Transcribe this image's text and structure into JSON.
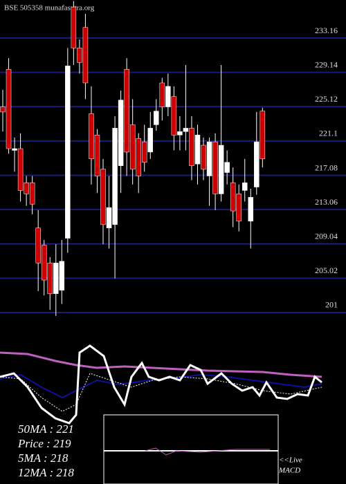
{
  "chart_data": {
    "type": "candlestick",
    "title": "BSE 505358 munafasutra.org",
    "up_color": "#ffffff",
    "down_color": "#cc0000",
    "grid_color": "#1c1c7a",
    "ylim": [
      200,
      237.62
    ],
    "yticks": [
      201,
      205.02,
      209.04,
      213.06,
      217.08,
      221.1,
      225.12,
      229.14,
      233.16
    ],
    "open": [
      225.1,
      229.5,
      220.0,
      220.2,
      216.2,
      216.2,
      210.9,
      208.9,
      206.8,
      203.2,
      203.6,
      209.7,
      236.8,
      232.0,
      234.4,
      224.3,
      221.8,
      217.8,
      210.9,
      211.3,
      218.2,
      229.5,
      223.0,
      221.4,
      221.0,
      219.8,
      223.0,
      227.9,
      225.1,
      226.3,
      221.8,
      222.2,
      222.6,
      218.4,
      220.6,
      217.0,
      221.0,
      214.9,
      217.4,
      216.2,
      214.9,
      215.3,
      211.7,
      215.7,
      224.6
    ],
    "high": [
      227.1,
      230.8,
      221.5,
      222.0,
      217.0,
      217.0,
      213.0,
      209.5,
      207.5,
      209.0,
      209.5,
      232.0,
      237.5,
      233.0,
      236.0,
      227.5,
      222.5,
      219.0,
      217.0,
      224.0,
      227.0,
      230.8,
      226.0,
      222.0,
      223.0,
      224.5,
      226.0,
      228.5,
      229.0,
      227.5,
      224.0,
      230.0,
      224.0,
      223.0,
      221.5,
      221.5,
      222.0,
      230.0,
      220.0,
      218.0,
      216.0,
      219.0,
      215.5,
      224.5,
      225.0
    ],
    "low": [
      222.2,
      219.6,
      217.5,
      214.0,
      213.5,
      212.5,
      203.5,
      203.0,
      201.3,
      200.6,
      202.0,
      208.0,
      230.0,
      229.0,
      226.0,
      216.0,
      215.0,
      209.0,
      208.5,
      205.0,
      215.0,
      217.0,
      216.0,
      215.0,
      217.5,
      219.0,
      222.3,
      223.5,
      224.0,
      220.0,
      220.0,
      220.0,
      216.5,
      216.0,
      216.5,
      213.5,
      213.0,
      214.0,
      216.0,
      211.0,
      210.5,
      214.0,
      208.5,
      214.8,
      218.0
    ],
    "close": [
      224.5,
      220.2,
      220.2,
      215.3,
      214.9,
      213.7,
      206.8,
      204.8,
      203.2,
      206.8,
      207.0,
      229.9,
      232.0,
      230.3,
      227.9,
      219.0,
      217.0,
      211.3,
      213.3,
      222.6,
      225.9,
      219.8,
      217.8,
      217.0,
      218.6,
      222.6,
      224.6,
      225.1,
      227.5,
      221.8,
      222.2,
      222.6,
      218.2,
      221.8,
      217.8,
      221.0,
      214.9,
      220.6,
      218.6,
      212.9,
      211.7,
      216.2,
      214.5,
      221.0,
      219.0
    ],
    "indicator_labels": [
      "50MA : 221",
      "Price : 219",
      "5MA : 218",
      "12MA : 218"
    ],
    "macd_label": [
      "<<Live",
      "MACD"
    ]
  }
}
